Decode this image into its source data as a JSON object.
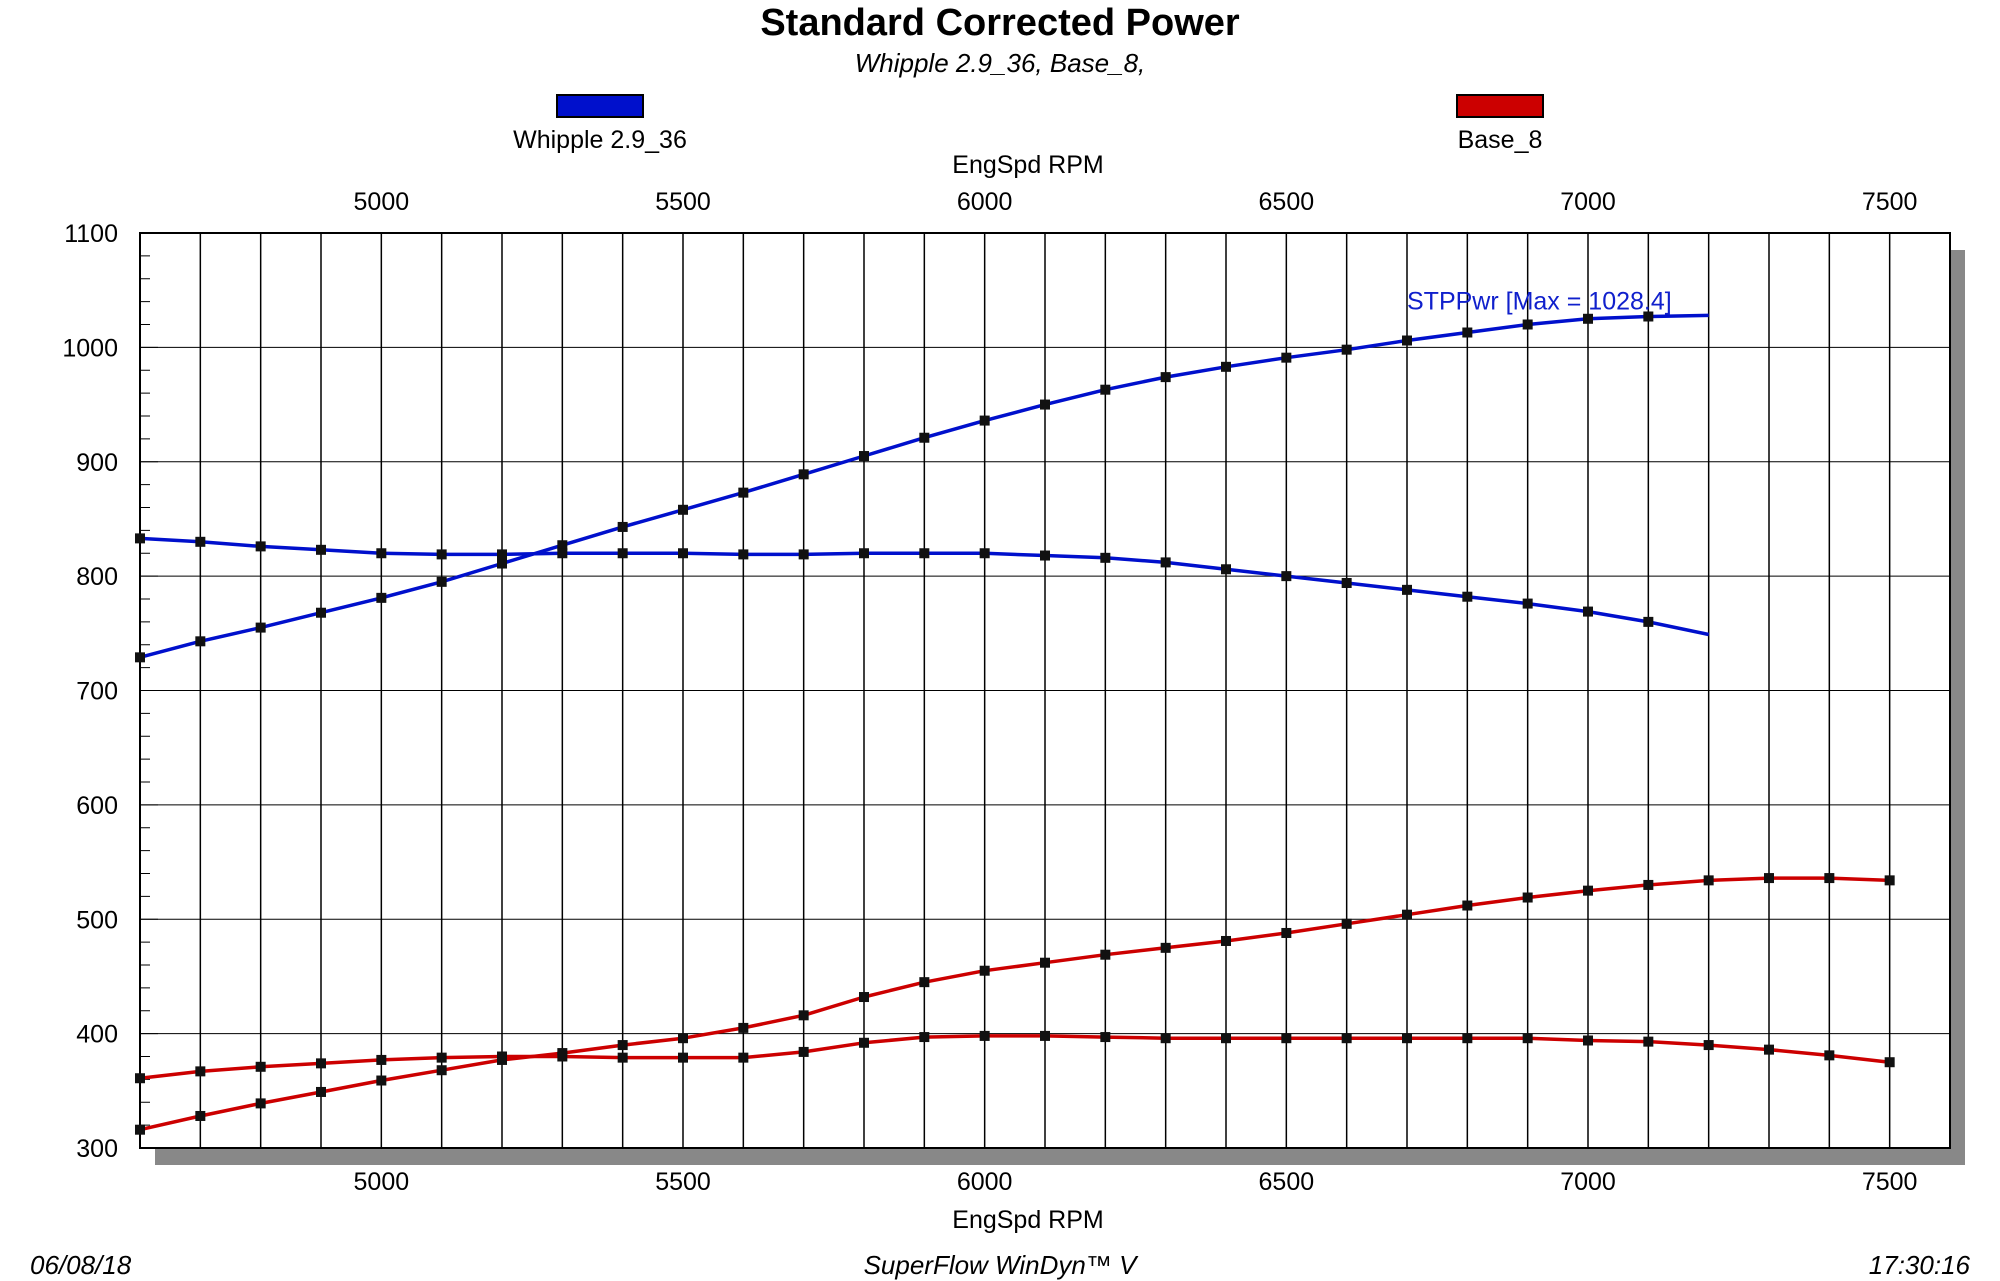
{
  "header": {
    "title": "Standard Corrected Power",
    "subtitle": "Whipple 2.9_36, Base_8,"
  },
  "legend": [
    {
      "label": "Whipple 2.9_36",
      "color": "#0010cc"
    },
    {
      "label": "Base_8",
      "color": "#cc0000"
    }
  ],
  "footer": {
    "date": "06/08/18",
    "software": "SuperFlow WinDyn™ V",
    "time": "17:30:16"
  },
  "chart_data": {
    "type": "line",
    "title": "Standard Corrected Power",
    "xlabel": "EngSpd RPM",
    "ylabel": "",
    "xlim": [
      4600,
      7600
    ],
    "ylim": [
      300,
      1100
    ],
    "x_ticks": [
      5000,
      5500,
      6000,
      6500,
      7000,
      7500
    ],
    "y_ticks": [
      300,
      400,
      500,
      600,
      700,
      800,
      900,
      1000,
      1100
    ],
    "grid": true,
    "annotation": {
      "text": "STPPwr [Max = 1028.4]",
      "x": 6700,
      "y": 1040
    },
    "series": [
      {
        "name": "Whipple 2.9_36",
        "color": "#0010cc",
        "x": [
          4600,
          4700,
          4800,
          4900,
          5000,
          5100,
          5200,
          5300,
          5400,
          5500,
          5600,
          5700,
          5800,
          5900,
          6000,
          6100,
          6200,
          6300,
          6400,
          6500,
          6600,
          6700,
          6800,
          6900,
          7000,
          7100,
          7200
        ],
        "values": [
          729,
          743,
          755,
          768,
          781,
          795,
          811,
          827,
          843,
          858,
          873,
          889,
          905,
          921,
          936,
          950,
          963,
          974,
          983,
          991,
          998,
          1006,
          1013,
          1020,
          1025,
          1027,
          1028
        ]
      },
      {
        "name": "Whipple 2.9_36",
        "color": "#0010cc",
        "x": [
          4600,
          4700,
          4800,
          4900,
          5000,
          5100,
          5200,
          5300,
          5400,
          5500,
          5600,
          5700,
          5800,
          5900,
          6000,
          6100,
          6200,
          6300,
          6400,
          6500,
          6600,
          6700,
          6800,
          6900,
          7000,
          7100,
          7200
        ],
        "values": [
          833,
          830,
          826,
          823,
          820,
          819,
          819,
          820,
          820,
          820,
          819,
          819,
          820,
          820,
          820,
          818,
          816,
          812,
          806,
          800,
          794,
          788,
          782,
          776,
          769,
          760,
          749
        ]
      },
      {
        "name": "Base_8",
        "color": "#cc0000",
        "x": [
          4600,
          4700,
          4800,
          4900,
          5000,
          5100,
          5200,
          5300,
          5400,
          5500,
          5600,
          5700,
          5800,
          5900,
          6000,
          6100,
          6200,
          6300,
          6400,
          6500,
          6600,
          6700,
          6800,
          6900,
          7000,
          7100,
          7200,
          7300,
          7400,
          7500
        ],
        "values": [
          316,
          328,
          339,
          349,
          359,
          368,
          377,
          383,
          390,
          396,
          405,
          416,
          432,
          445,
          455,
          462,
          469,
          475,
          481,
          488,
          496,
          504,
          512,
          519,
          525,
          530,
          534,
          536,
          536,
          534
        ]
      },
      {
        "name": "Base_8",
        "color": "#cc0000",
        "x": [
          4600,
          4700,
          4800,
          4900,
          5000,
          5100,
          5200,
          5300,
          5400,
          5500,
          5600,
          5700,
          5800,
          5900,
          6000,
          6100,
          6200,
          6300,
          6400,
          6500,
          6600,
          6700,
          6800,
          6900,
          7000,
          7100,
          7200,
          7300,
          7400,
          7500
        ],
        "values": [
          361,
          367,
          371,
          374,
          377,
          379,
          380,
          380,
          379,
          379,
          379,
          384,
          392,
          397,
          398,
          398,
          397,
          396,
          396,
          396,
          396,
          396,
          396,
          396,
          394,
          393,
          390,
          386,
          381,
          375
        ]
      }
    ]
  }
}
